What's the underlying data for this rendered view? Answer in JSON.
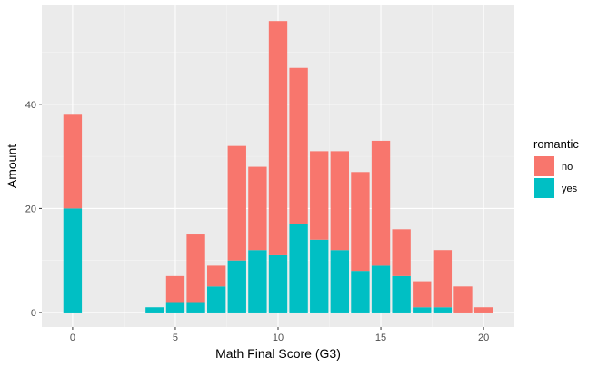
{
  "chart_data": {
    "type": "bar",
    "stacked": true,
    "xlabel": "Math Final Score (G3)",
    "ylabel": "Amount",
    "xlim": [
      -1.5,
      21.5
    ],
    "ylim": [
      -2.8,
      59
    ],
    "x_ticks": [
      0,
      5,
      10,
      15,
      20
    ],
    "y_ticks": [
      0,
      20,
      40
    ],
    "grid": true,
    "legend": {
      "title": "romantic",
      "position": "right",
      "entries": [
        "no",
        "yes"
      ]
    },
    "x": [
      0,
      4,
      5,
      6,
      7,
      8,
      9,
      10,
      11,
      12,
      13,
      14,
      15,
      16,
      17,
      18,
      19,
      20
    ],
    "series": [
      {
        "name": "no",
        "color": "#F8766D",
        "values": [
          18,
          0,
          5,
          13,
          4,
          22,
          16,
          45,
          30,
          17,
          19,
          19,
          24,
          9,
          5,
          11,
          5,
          1
        ]
      },
      {
        "name": "yes",
        "color": "#00BFC4",
        "values": [
          20,
          1,
          2,
          2,
          5,
          10,
          12,
          11,
          17,
          14,
          12,
          8,
          9,
          7,
          1,
          1,
          0,
          0
        ]
      }
    ]
  }
}
